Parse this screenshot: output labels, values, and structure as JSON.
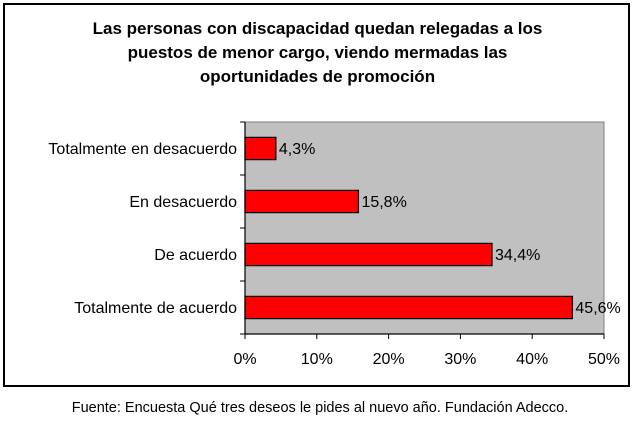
{
  "chart_data": {
    "type": "bar",
    "orientation": "horizontal",
    "title_lines": [
      "Las personas con discapacidad quedan relegadas a los",
      "puestos de menor cargo, viendo mermadas las",
      "oportunidades de promoción"
    ],
    "categories": [
      "Totalmente en desacuerdo",
      "En desacuerdo",
      "De acuerdo",
      "Totalmente de acuerdo"
    ],
    "values": [
      4.3,
      15.8,
      34.4,
      45.6
    ],
    "value_labels": [
      "4,3%",
      "15,8%",
      "34,4%",
      "45,6%"
    ],
    "xlim": [
      0,
      50
    ],
    "x_ticks": [
      0,
      10,
      20,
      30,
      40,
      50
    ],
    "x_tick_labels": [
      "0%",
      "10%",
      "20%",
      "30%",
      "40%",
      "50%"
    ],
    "xlabel": "",
    "ylabel": "",
    "grid": false,
    "legend": "none",
    "colors": {
      "bar_fill": "#ff0000",
      "bar_stroke": "#000000",
      "plot_background": "#c0c0c0"
    }
  },
  "source_note": "Fuente: Encuesta Qué tres deseos le pides al nuevo año. Fundación Adecco."
}
